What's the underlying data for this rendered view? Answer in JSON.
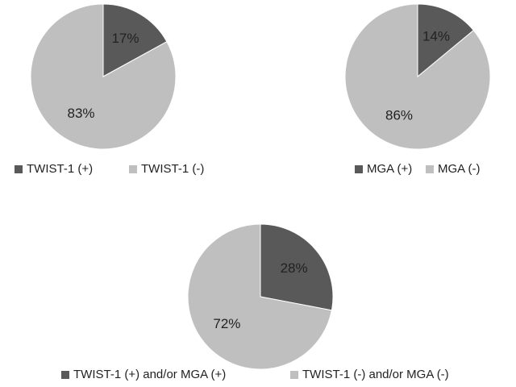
{
  "chart_data": [
    {
      "type": "pie",
      "categories": [
        "TWIST-1 (+)",
        "TWIST-1 (-)"
      ],
      "values": [
        17,
        83
      ],
      "value_labels": [
        "17%",
        "83%"
      ],
      "colors": [
        "#595959",
        "#bfbfbf"
      ]
    },
    {
      "type": "pie",
      "categories": [
        "MGA (+)",
        "MGA (-)"
      ],
      "values": [
        14,
        86
      ],
      "value_labels": [
        "14%",
        "86%"
      ],
      "colors": [
        "#595959",
        "#bfbfbf"
      ]
    },
    {
      "type": "pie",
      "categories": [
        "TWIST-1 (+) and/or MGA (+)",
        "TWIST-1 (-) and/or MGA (-)"
      ],
      "values": [
        28,
        72
      ],
      "value_labels": [
        "28%",
        "72%"
      ],
      "colors": [
        "#595959",
        "#bfbfbf"
      ]
    }
  ]
}
